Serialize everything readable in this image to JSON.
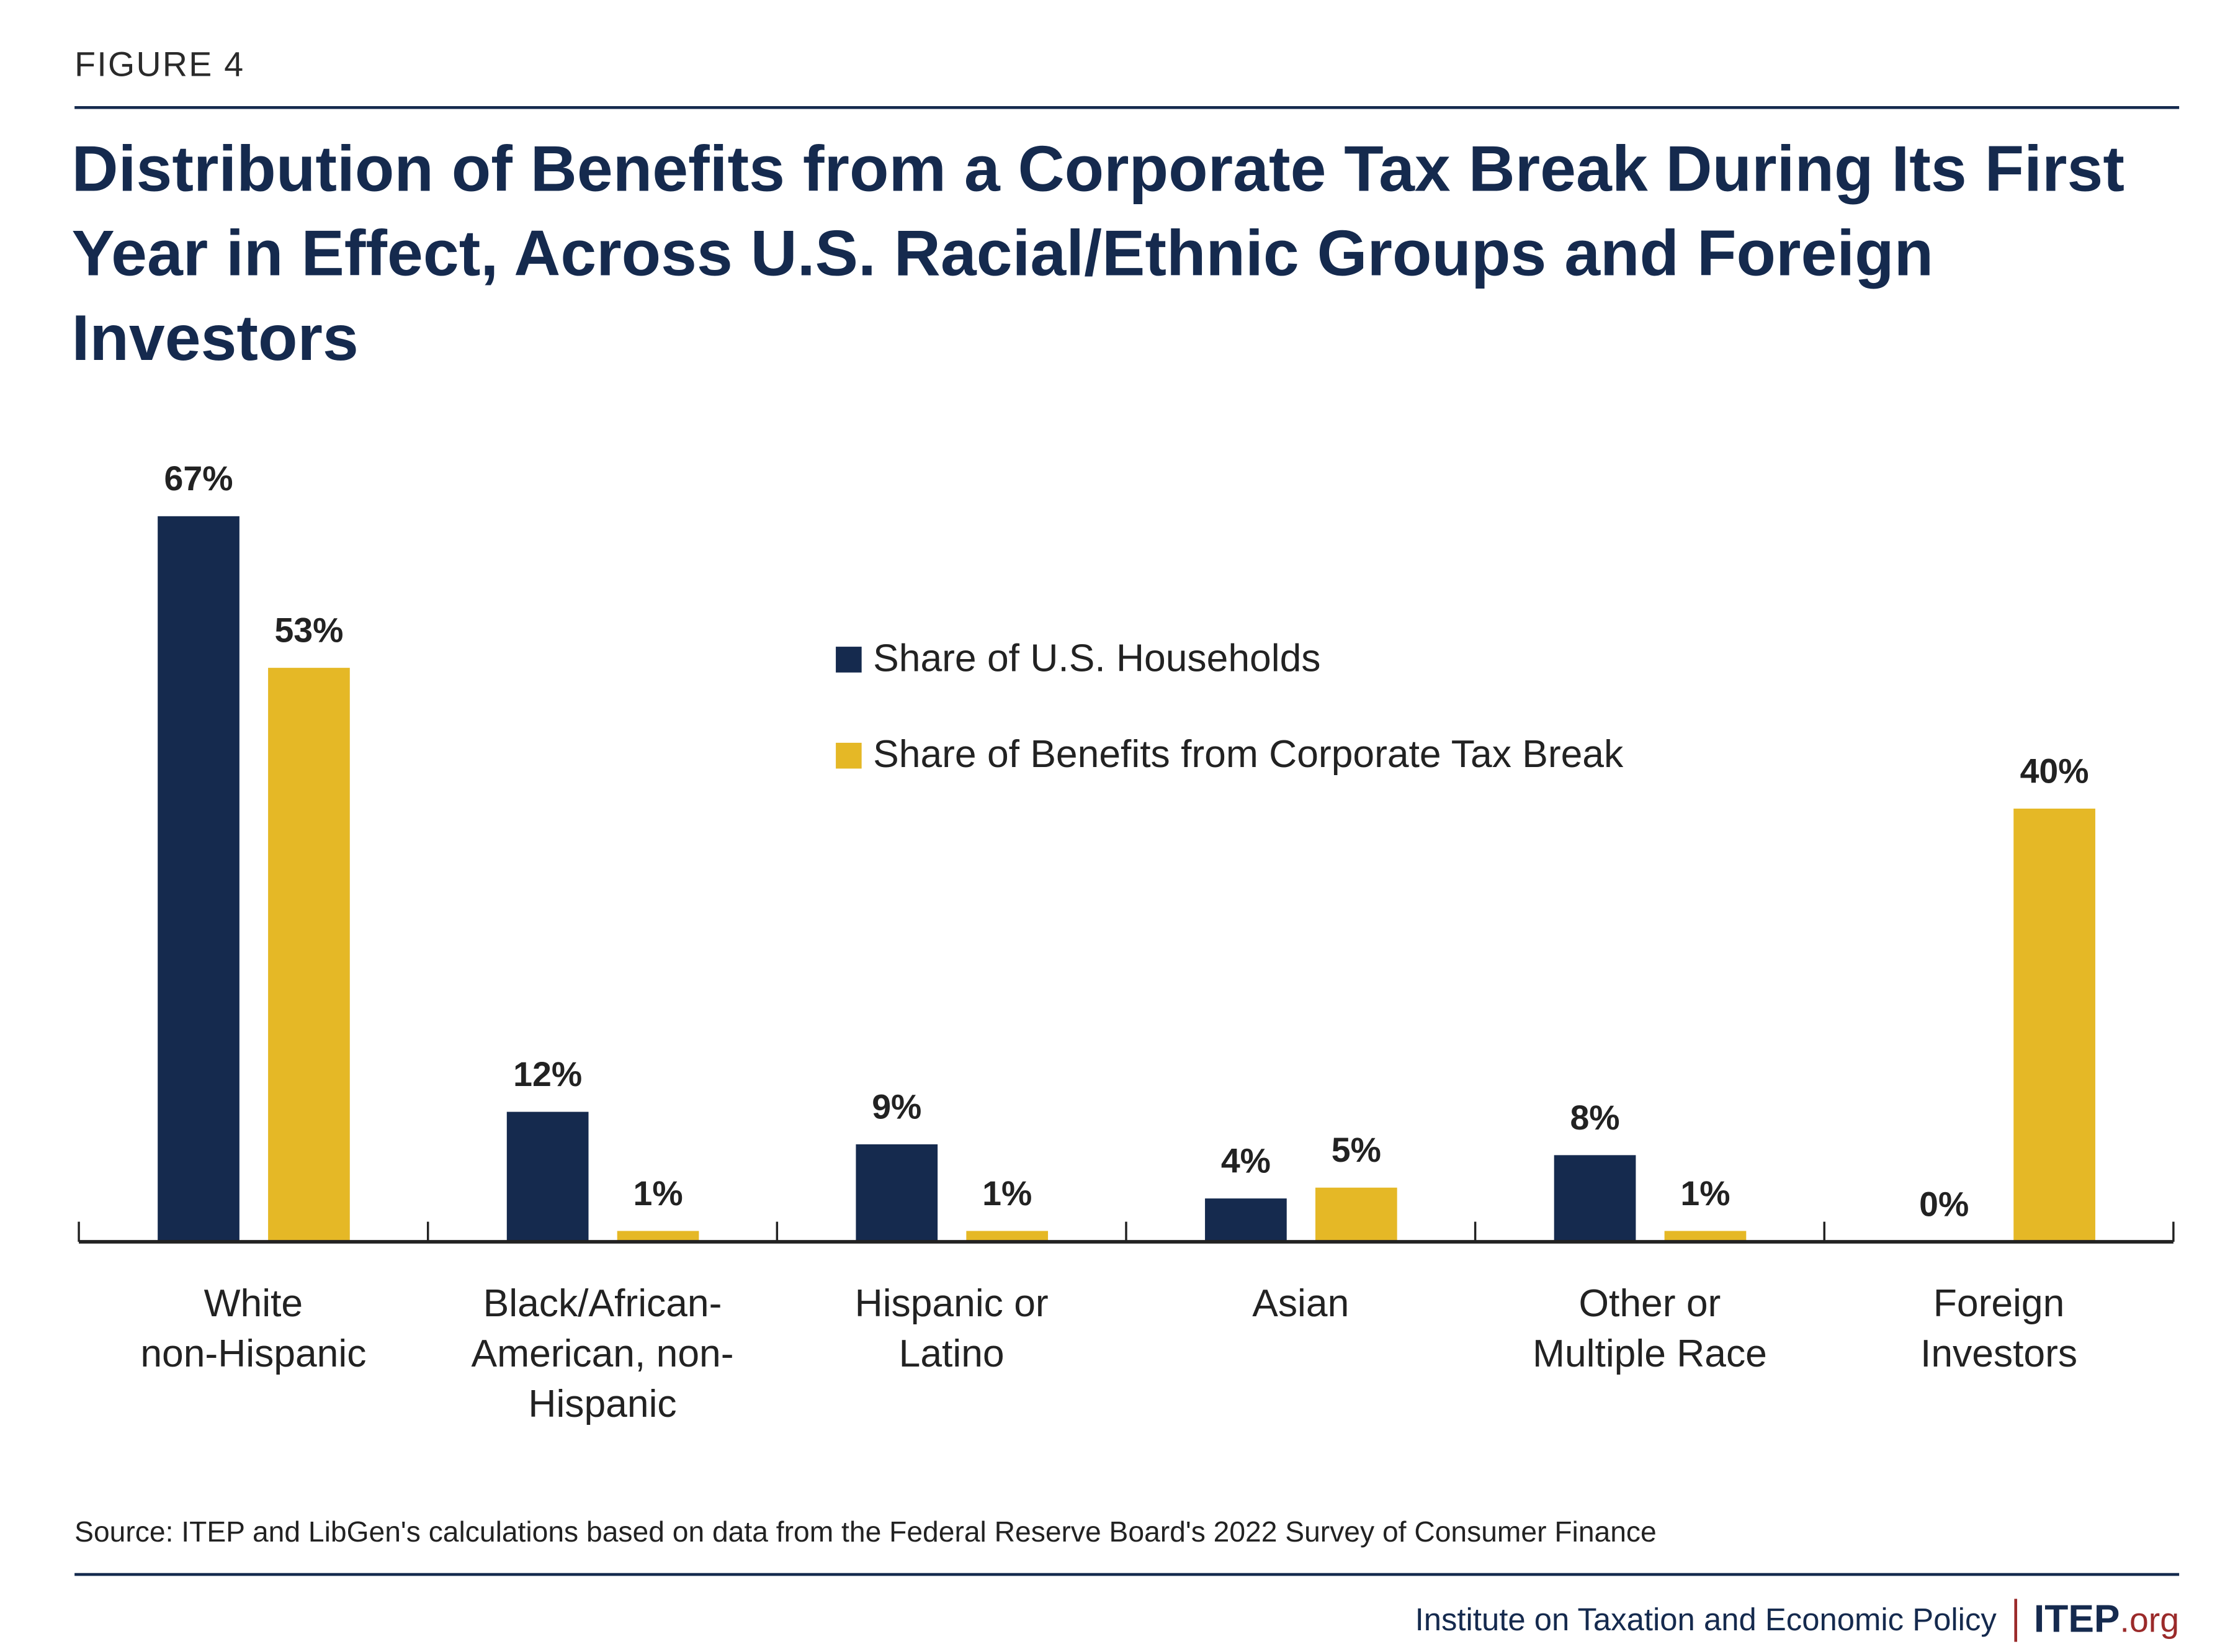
{
  "figure_label": "FIGURE 4",
  "title": "Distribution of Benefits from a Corporate Tax Break During Its First Year in Effect, Across U.S. Racial/Ethnic Groups and Foreign Investors",
  "source": "Source: ITEP and LibGen's calculations based on data from the Federal Reserve Board's 2022 Survey of Consumer Finance",
  "footer": {
    "org_name": "Institute on Taxation and Economic Policy",
    "logo_main": "ITEP",
    "logo_suffix": ".org"
  },
  "colors": {
    "navy": "#152a4e",
    "gold": "#e5b826",
    "accent_red": "#9b2a2a"
  },
  "chart_data": {
    "type": "bar",
    "title": "Distribution of Benefits from a Corporate Tax Break During Its First Year in Effect, Across U.S. Racial/Ethnic Groups and Foreign Investors",
    "categories": [
      [
        "White",
        "non-Hispanic"
      ],
      [
        "Black/African-",
        "American, non-",
        "Hispanic"
      ],
      [
        "Hispanic or",
        "Latino"
      ],
      [
        "Asian"
      ],
      [
        "Other or",
        "Multiple Race"
      ],
      [
        "Foreign",
        "Investors"
      ]
    ],
    "series": [
      {
        "name": "Share of U.S. Households",
        "color": "#152a4e",
        "values": [
          67,
          12,
          9,
          4,
          8,
          0
        ],
        "labels": [
          "67%",
          "12%",
          "9%",
          "4%",
          "8%",
          "0%"
        ]
      },
      {
        "name": "Share of Benefits from Corporate Tax Break",
        "color": "#e5b826",
        "values": [
          53,
          1,
          1,
          5,
          1,
          40
        ],
        "labels": [
          "53%",
          "1%",
          "1%",
          "5%",
          "1%",
          "40%"
        ]
      }
    ],
    "xlabel": "",
    "ylabel": "",
    "ylim": [
      0,
      70
    ],
    "grid": false,
    "legend": "top-center",
    "y_axis_visible": false
  }
}
